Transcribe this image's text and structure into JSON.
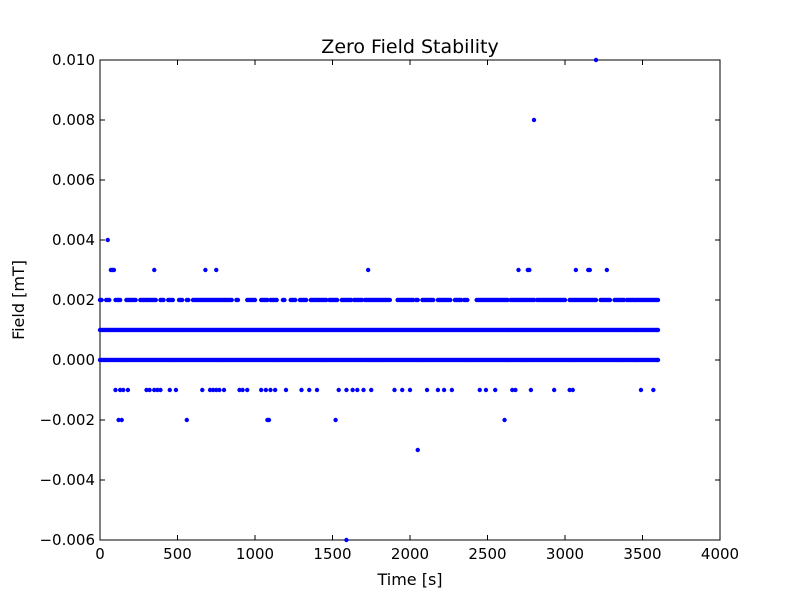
{
  "chart_data": {
    "type": "scatter",
    "title": "Zero Field Stability",
    "xlabel": "Time [s]",
    "ylabel": "Field [mT]",
    "xlim": [
      0,
      4000
    ],
    "ylim": [
      -0.006,
      0.01
    ],
    "xticks": [
      0,
      500,
      1000,
      1500,
      2000,
      2500,
      3000,
      3500,
      4000
    ],
    "xtick_labels": [
      "0",
      "500",
      "1000",
      "1500",
      "2000",
      "2500",
      "3000",
      "3500",
      "4000"
    ],
    "yticks": [
      -0.006,
      -0.004,
      -0.002,
      0.0,
      0.002,
      0.004,
      0.006,
      0.008,
      0.01
    ],
    "ytick_labels": [
      "−0.006",
      "−0.004",
      "−0.002",
      "0.000",
      "0.002",
      "0.004",
      "0.006",
      "0.008",
      "0.010"
    ],
    "grid": false,
    "marker_color": "#0000ff",
    "series": [
      {
        "x_start": 0,
        "x_end": 3600,
        "x_step": 10,
        "baseline": 0.0,
        "levels": [
          {
            "y": 0.001,
            "spans": [
              [
                0,
                3600
              ]
            ]
          },
          {
            "y": 0.002,
            "spans": [
              [
                0,
                10
              ],
              [
                40,
                60
              ],
              [
                100,
                130
              ],
              [
                170,
                230
              ],
              [
                260,
                360
              ],
              [
                390,
                410
              ],
              [
                440,
                470
              ],
              [
                510,
                530
              ],
              [
                560,
                570
              ],
              [
                600,
                850
              ],
              [
                880,
                890
              ],
              [
                950,
                1000
              ],
              [
                1040,
                1080
              ],
              [
                1100,
                1140
              ],
              [
                1180,
                1190
              ],
              [
                1230,
                1260
              ],
              [
                1290,
                1330
              ],
              [
                1360,
                1460
              ],
              [
                1480,
                1510
              ],
              [
                1520,
                1530
              ],
              [
                1560,
                1620
              ],
              [
                1640,
                1690
              ],
              [
                1710,
                1870
              ],
              [
                1920,
                2020
              ],
              [
                2040,
                2050
              ],
              [
                2080,
                2150
              ],
              [
                2180,
                2260
              ],
              [
                2290,
                2330
              ],
              [
                2350,
                2370
              ],
              [
                2430,
                2630
              ],
              [
                2650,
                2800
              ],
              [
                2820,
                3000
              ],
              [
                3030,
                3200
              ],
              [
                3230,
                3290
              ],
              [
                3320,
                3380
              ],
              [
                3400,
                3600
              ]
            ]
          }
        ],
        "points": [
          [
            50,
            0.004
          ],
          [
            70,
            0.003
          ],
          [
            80,
            0.003
          ],
          [
            90,
            0.003
          ],
          [
            350,
            0.003
          ],
          [
            680,
            0.003
          ],
          [
            750,
            0.003
          ],
          [
            1730,
            0.003
          ],
          [
            2700,
            0.003
          ],
          [
            2760,
            0.003
          ],
          [
            2770,
            0.003
          ],
          [
            3070,
            0.003
          ],
          [
            3150,
            0.003
          ],
          [
            3160,
            0.003
          ],
          [
            3270,
            0.003
          ],
          [
            2800,
            0.008
          ],
          [
            3200,
            0.01
          ],
          [
            100,
            -0.001
          ],
          [
            130,
            -0.001
          ],
          [
            150,
            -0.001
          ],
          [
            180,
            -0.001
          ],
          [
            300,
            -0.001
          ],
          [
            320,
            -0.001
          ],
          [
            350,
            -0.001
          ],
          [
            370,
            -0.001
          ],
          [
            390,
            -0.001
          ],
          [
            450,
            -0.001
          ],
          [
            490,
            -0.001
          ],
          [
            660,
            -0.001
          ],
          [
            710,
            -0.001
          ],
          [
            730,
            -0.001
          ],
          [
            750,
            -0.001
          ],
          [
            770,
            -0.001
          ],
          [
            800,
            -0.001
          ],
          [
            900,
            -0.001
          ],
          [
            920,
            -0.001
          ],
          [
            950,
            -0.001
          ],
          [
            1040,
            -0.001
          ],
          [
            1070,
            -0.001
          ],
          [
            1100,
            -0.001
          ],
          [
            1130,
            -0.001
          ],
          [
            1200,
            -0.001
          ],
          [
            1300,
            -0.001
          ],
          [
            1350,
            -0.001
          ],
          [
            1400,
            -0.001
          ],
          [
            1540,
            -0.001
          ],
          [
            1590,
            -0.001
          ],
          [
            1630,
            -0.001
          ],
          [
            1660,
            -0.001
          ],
          [
            1700,
            -0.001
          ],
          [
            1750,
            -0.001
          ],
          [
            1900,
            -0.001
          ],
          [
            1950,
            -0.001
          ],
          [
            2000,
            -0.001
          ],
          [
            2110,
            -0.001
          ],
          [
            2180,
            -0.001
          ],
          [
            2220,
            -0.001
          ],
          [
            2270,
            -0.001
          ],
          [
            2450,
            -0.001
          ],
          [
            2490,
            -0.001
          ],
          [
            2550,
            -0.001
          ],
          [
            2660,
            -0.001
          ],
          [
            2680,
            -0.001
          ],
          [
            2780,
            -0.001
          ],
          [
            2930,
            -0.001
          ],
          [
            3030,
            -0.001
          ],
          [
            3050,
            -0.001
          ],
          [
            3490,
            -0.001
          ],
          [
            3570,
            -0.001
          ],
          [
            120,
            -0.002
          ],
          [
            140,
            -0.002
          ],
          [
            560,
            -0.002
          ],
          [
            1080,
            -0.002
          ],
          [
            1090,
            -0.002
          ],
          [
            1520,
            -0.002
          ],
          [
            2610,
            -0.002
          ],
          [
            2050,
            -0.003
          ],
          [
            1590,
            -0.006
          ]
        ]
      }
    ]
  }
}
